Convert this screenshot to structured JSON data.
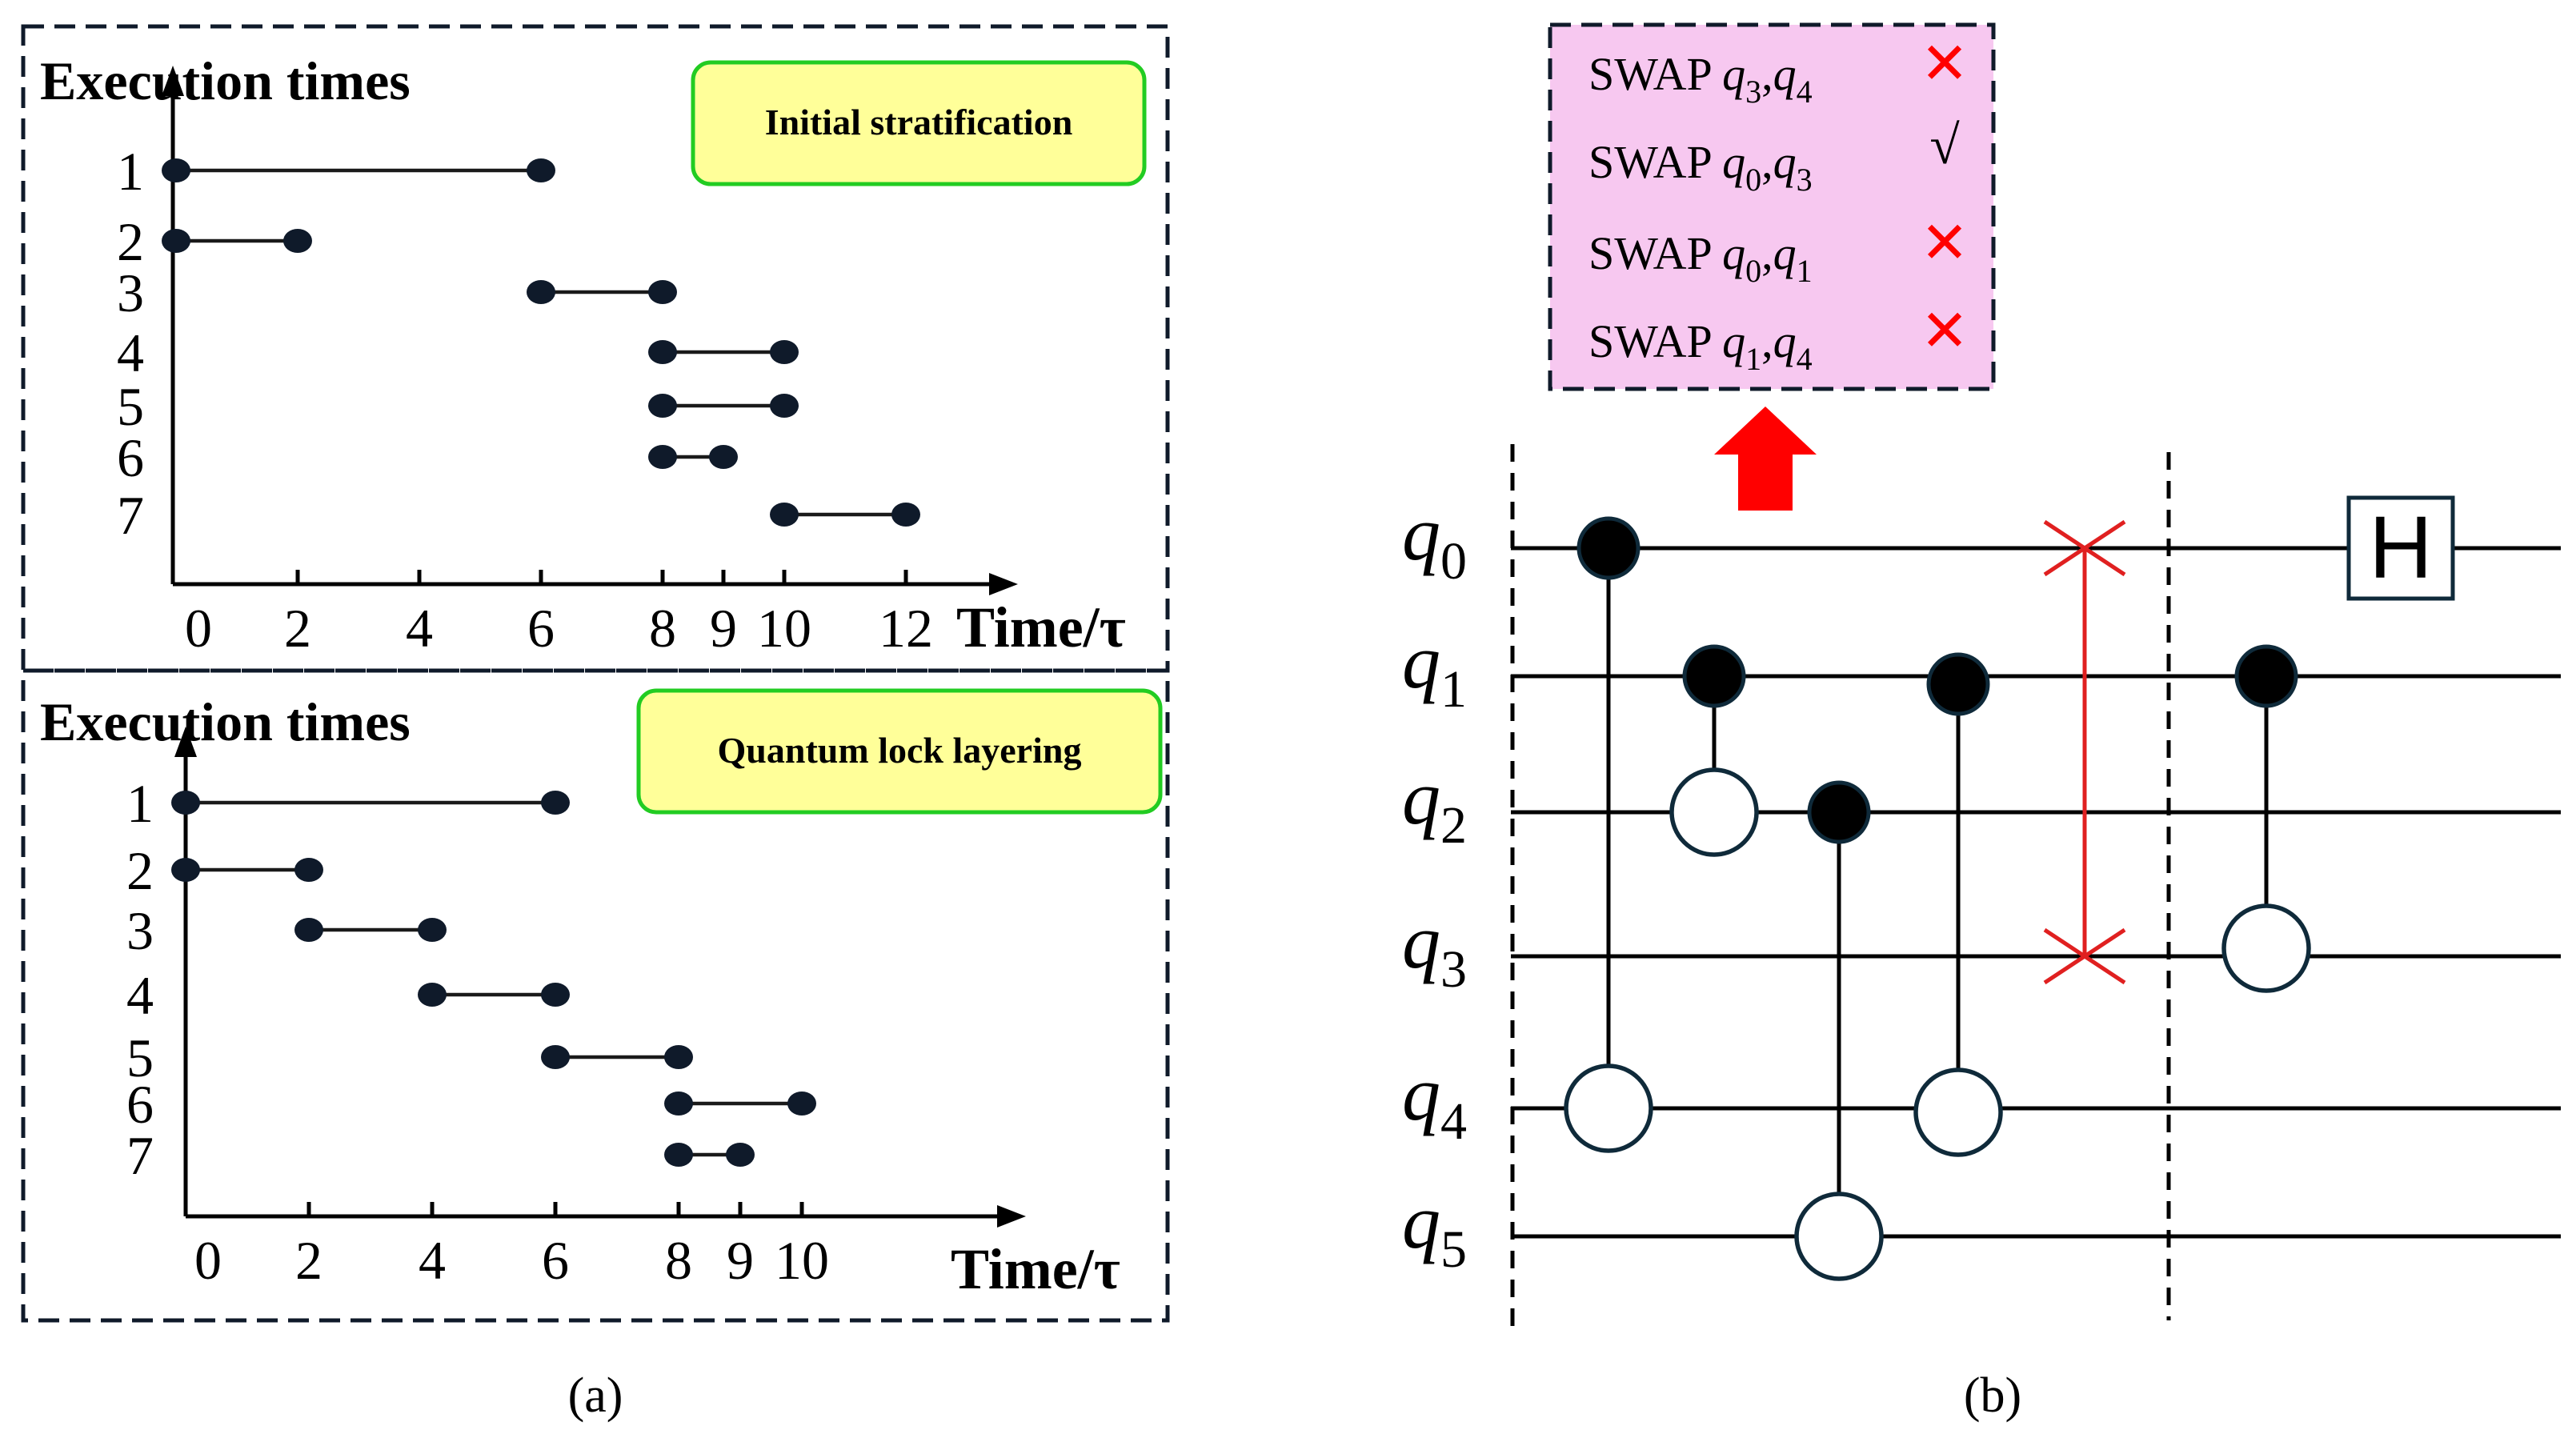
{
  "panel_a": {
    "caption": "(a)",
    "top": {
      "ylabel": "Execution times",
      "badge": "Initial stratification",
      "xlabel": "Time/τ",
      "row_labels": [
        "1",
        "2",
        "3",
        "4",
        "5",
        "6",
        "7"
      ],
      "x_ticks": [
        {
          "label": "0",
          "value": 0
        },
        {
          "label": "2",
          "value": 2
        },
        {
          "label": "4",
          "value": 4
        },
        {
          "label": "6",
          "value": 6
        },
        {
          "label": "8",
          "value": 8
        },
        {
          "label": "9",
          "value": 9
        },
        {
          "label": "10",
          "value": 10
        },
        {
          "label": "12",
          "value": 12
        }
      ],
      "intervals": [
        {
          "row": 1,
          "start": 0,
          "end": 6
        },
        {
          "row": 2,
          "start": 0,
          "end": 2
        },
        {
          "row": 3,
          "start": 6,
          "end": 8
        },
        {
          "row": 4,
          "start": 8,
          "end": 10
        },
        {
          "row": 5,
          "start": 8,
          "end": 10
        },
        {
          "row": 6,
          "start": 8,
          "end": 9
        },
        {
          "row": 7,
          "start": 10,
          "end": 12
        }
      ]
    },
    "bottom": {
      "ylabel": "Execution times",
      "badge": "Quantum lock layering",
      "xlabel": "Time/τ",
      "row_labels": [
        "1",
        "2",
        "3",
        "4",
        "5",
        "6",
        "7"
      ],
      "x_ticks": [
        {
          "label": "0",
          "value": 0
        },
        {
          "label": "2",
          "value": 2
        },
        {
          "label": "4",
          "value": 4
        },
        {
          "label": "6",
          "value": 6
        },
        {
          "label": "8",
          "value": 8
        },
        {
          "label": "9",
          "value": 9
        },
        {
          "label": "10",
          "value": 10
        }
      ],
      "intervals": [
        {
          "row": 1,
          "start": 0,
          "end": 6
        },
        {
          "row": 2,
          "start": 0,
          "end": 2
        },
        {
          "row": 3,
          "start": 2,
          "end": 4
        },
        {
          "row": 4,
          "start": 4,
          "end": 6
        },
        {
          "row": 5,
          "start": 6,
          "end": 8
        },
        {
          "row": 6,
          "start": 8,
          "end": 10
        },
        {
          "row": 7,
          "start": 8,
          "end": 9
        }
      ]
    }
  },
  "panel_b": {
    "caption": "(b)",
    "swap_candidates": [
      {
        "label": "SWAP",
        "q_a": "3",
        "q_b": "4",
        "mark": "✕",
        "mark_color": "#ff0000"
      },
      {
        "label": "SWAP",
        "q_a": "0",
        "q_b": "3",
        "mark": "√",
        "mark_color": "#000000"
      },
      {
        "label": "SWAP",
        "q_a": "0",
        "q_b": "1",
        "mark": "✕",
        "mark_color": "#ff0000"
      },
      {
        "label": "SWAP",
        "q_a": "1",
        "q_b": "4",
        "mark": "✕",
        "mark_color": "#ff0000"
      }
    ],
    "qubit_symbol": "q",
    "qubits": [
      "0",
      "1",
      "2",
      "3",
      "4",
      "5"
    ],
    "gate_h": "H",
    "arrow_color": "#ff0000",
    "swap_color": "#e02020",
    "box_fill": "#f7c8f0"
  }
}
